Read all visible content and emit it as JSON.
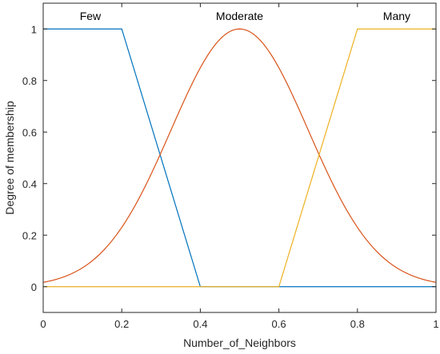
{
  "chart_data": {
    "type": "line",
    "xlabel": "Number_of_Neighbors",
    "ylabel": "Degree of membership",
    "xlim": [
      0,
      1
    ],
    "ylim": [
      -0.1,
      1.1
    ],
    "xticks": [
      0,
      0.2,
      0.4,
      0.6,
      0.8,
      1
    ],
    "xtick_labels": [
      "0",
      "0.2",
      "0.4",
      "0.6",
      "0.8",
      "1"
    ],
    "yticks": [
      0,
      0.2,
      0.4,
      0.6,
      0.8,
      1
    ],
    "ytick_labels": [
      "0",
      "0.2",
      "0.4",
      "0.6",
      "0.8",
      "1"
    ],
    "grid": false,
    "series": [
      {
        "name": "Few",
        "shape": "trapezoid",
        "color": "#0072BD",
        "x": [
          0,
          0.2,
          0.4,
          1
        ],
        "y": [
          1,
          1,
          0,
          0
        ],
        "label_at": [
          0.12,
          1.05
        ]
      },
      {
        "name": "Moderate",
        "shape": "gaussian",
        "color": "#D95319",
        "mean": 0.5,
        "sigma": 0.175,
        "label_at": [
          0.5,
          1.05
        ]
      },
      {
        "name": "Many",
        "shape": "trapezoid",
        "color": "#EDB120",
        "x": [
          0,
          0.6,
          0.8,
          1
        ],
        "y": [
          0,
          0,
          1,
          1
        ],
        "label_at": [
          0.9,
          1.05
        ]
      }
    ]
  }
}
